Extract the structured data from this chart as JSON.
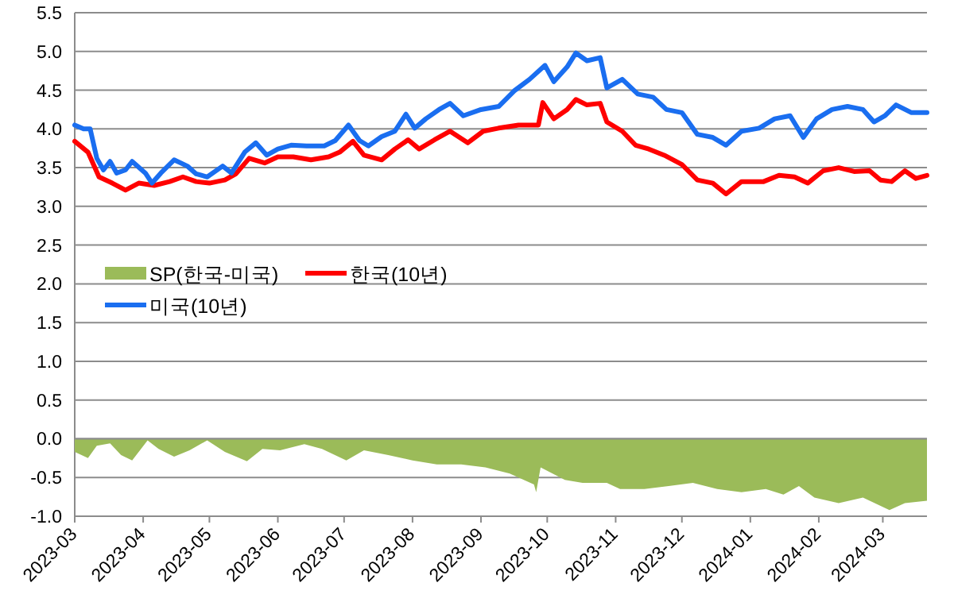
{
  "chart_data": {
    "type": "line",
    "xlim": [
      "2023-03-01",
      "2024-03-21"
    ],
    "ylim": [
      -1.0,
      5.5
    ],
    "xticks": [
      "2023-03",
      "2023-04",
      "2023-05",
      "2023-06",
      "2023-07",
      "2023-08",
      "2023-09",
      "2023-10",
      "2023-11",
      "2023-12",
      "2024-01",
      "2024-02",
      "2024-03"
    ],
    "yticks": [
      {
        "value": -1,
        "label": "-1.0"
      },
      -0.5,
      {
        "value": 0,
        "label": "0.0"
      },
      0.5,
      {
        "value": 1,
        "label": "1.0"
      },
      1.5,
      {
        "value": 2,
        "label": "2.0"
      },
      2.5,
      {
        "value": 3,
        "label": "3.0"
      },
      3.5,
      {
        "value": 4,
        "label": "4.0"
      },
      4.5,
      {
        "value": 5,
        "label": "5.0"
      },
      5.5
    ],
    "grid": "y",
    "legend": "left",
    "line_style": "solid",
    "marker": "none",
    "series": [
      {
        "name": "SP(한국-미국)",
        "type": "area",
        "color": "#9bbb59",
        "x": [
          "2023-03-01",
          "2023-03-07",
          "2023-03-11",
          "2023-03-17",
          "2023-03-22",
          "2023-03-27",
          "2023-04-03",
          "2023-04-08",
          "2023-04-15",
          "2023-04-22",
          "2023-04-30",
          "2023-05-08",
          "2023-05-18",
          "2023-05-25",
          "2023-06-02",
          "2023-06-13",
          "2023-06-21",
          "2023-07-02",
          "2023-07-10",
          "2023-07-21",
          "2023-08-01",
          "2023-08-12",
          "2023-08-23",
          "2023-09-03",
          "2023-09-14",
          "2023-09-25",
          "2023-09-26",
          "2023-09-28",
          "2023-10-09",
          "2023-10-17",
          "2023-10-28",
          "2023-11-03",
          "2023-11-14",
          "2023-11-25",
          "2023-12-06",
          "2023-12-17",
          "2023-12-28",
          "2024-01-08",
          "2024-01-16",
          "2024-01-23",
          "2024-01-30",
          "2024-02-10",
          "2024-02-21",
          "2024-03-04",
          "2024-03-11",
          "2024-03-21"
        ],
        "values": [
          -0.17,
          -0.25,
          -0.09,
          -0.06,
          -0.21,
          -0.28,
          -0.02,
          -0.13,
          -0.23,
          -0.15,
          -0.02,
          -0.17,
          -0.29,
          -0.13,
          -0.15,
          -0.07,
          -0.13,
          -0.28,
          -0.15,
          -0.21,
          -0.28,
          -0.33,
          -0.33,
          -0.37,
          -0.45,
          -0.59,
          -0.69,
          -0.37,
          -0.53,
          -0.57,
          -0.57,
          -0.65,
          -0.65,
          -0.61,
          -0.57,
          -0.65,
          -0.69,
          -0.65,
          -0.72,
          -0.61,
          -0.76,
          -0.83,
          -0.76,
          -0.92,
          -0.83,
          -0.8
        ]
      },
      {
        "name": "한국(10년)",
        "color": "#ff0000",
        "x": [
          "2023-03-01",
          "2023-03-07",
          "2023-03-12",
          "2023-03-18",
          "2023-03-24",
          "2023-03-30",
          "2023-04-06",
          "2023-04-13",
          "2023-04-19",
          "2023-04-25",
          "2023-05-01",
          "2023-05-08",
          "2023-05-13",
          "2023-05-19",
          "2023-05-26",
          "2023-06-01",
          "2023-06-08",
          "2023-06-16",
          "2023-06-24",
          "2023-06-29",
          "2023-07-05",
          "2023-07-10",
          "2023-07-18",
          "2023-07-24",
          "2023-07-30",
          "2023-08-04",
          "2023-08-11",
          "2023-08-18",
          "2023-08-26",
          "2023-09-02",
          "2023-09-09",
          "2023-09-18",
          "2023-09-27",
          "2023-09-29",
          "2023-10-04",
          "2023-10-10",
          "2023-10-14",
          "2023-10-19",
          "2023-10-25",
          "2023-10-28",
          "2023-11-04",
          "2023-11-10",
          "2023-11-16",
          "2023-11-23",
          "2023-12-01",
          "2023-12-08",
          "2023-12-15",
          "2023-12-21",
          "2023-12-28",
          "2024-01-07",
          "2024-01-14",
          "2024-01-21",
          "2024-01-27",
          "2024-02-03",
          "2024-02-10",
          "2024-02-17",
          "2024-02-24",
          "2024-02-29",
          "2024-03-05",
          "2024-03-11",
          "2024-03-16",
          "2024-03-21"
        ],
        "values": [
          3.84,
          3.7,
          3.38,
          3.3,
          3.21,
          3.3,
          3.27,
          3.32,
          3.38,
          3.32,
          3.3,
          3.34,
          3.42,
          3.62,
          3.56,
          3.64,
          3.64,
          3.6,
          3.64,
          3.7,
          3.84,
          3.66,
          3.6,
          3.74,
          3.86,
          3.74,
          3.86,
          3.97,
          3.82,
          3.97,
          4.01,
          4.05,
          4.05,
          4.34,
          4.13,
          4.25,
          4.38,
          4.31,
          4.33,
          4.09,
          3.97,
          3.79,
          3.74,
          3.66,
          3.54,
          3.34,
          3.3,
          3.16,
          3.32,
          3.32,
          3.4,
          3.38,
          3.3,
          3.46,
          3.5,
          3.45,
          3.46,
          3.34,
          3.32,
          3.46,
          3.36,
          3.4
        ]
      },
      {
        "name": "미국(10년)",
        "color": "#1a6ef0",
        "x": [
          "2023-03-01",
          "2023-03-05",
          "2023-03-08",
          "2023-03-11",
          "2023-03-14",
          "2023-03-17",
          "2023-03-20",
          "2023-03-24",
          "2023-03-27",
          "2023-04-02",
          "2023-04-05",
          "2023-04-09",
          "2023-04-15",
          "2023-04-21",
          "2023-04-25",
          "2023-04-30",
          "2023-05-07",
          "2023-05-11",
          "2023-05-17",
          "2023-05-22",
          "2023-05-27",
          "2023-06-01",
          "2023-06-07",
          "2023-06-14",
          "2023-06-22",
          "2023-06-27",
          "2023-07-03",
          "2023-07-08",
          "2023-07-12",
          "2023-07-18",
          "2023-07-24",
          "2023-07-29",
          "2023-08-02",
          "2023-08-07",
          "2023-08-13",
          "2023-08-18",
          "2023-08-24",
          "2023-09-01",
          "2023-09-09",
          "2023-09-16",
          "2023-09-23",
          "2023-09-30",
          "2023-10-04",
          "2023-10-10",
          "2023-10-14",
          "2023-10-19",
          "2023-10-25",
          "2023-10-28",
          "2023-11-04",
          "2023-11-11",
          "2023-11-18",
          "2023-11-24",
          "2023-12-01",
          "2023-12-08",
          "2023-12-15",
          "2023-12-21",
          "2023-12-28",
          "2024-01-05",
          "2024-01-12",
          "2024-01-19",
          "2024-01-25",
          "2024-01-31",
          "2024-02-07",
          "2024-02-14",
          "2024-02-21",
          "2024-02-26",
          "2024-03-02",
          "2024-03-07",
          "2024-03-14",
          "2024-03-21"
        ],
        "values": [
          4.05,
          4.0,
          4.0,
          3.62,
          3.47,
          3.58,
          3.43,
          3.47,
          3.58,
          3.43,
          3.3,
          3.43,
          3.6,
          3.52,
          3.42,
          3.38,
          3.52,
          3.43,
          3.7,
          3.82,
          3.66,
          3.74,
          3.79,
          3.78,
          3.78,
          3.85,
          4.05,
          3.85,
          3.78,
          3.9,
          3.97,
          4.19,
          4.01,
          4.13,
          4.25,
          4.33,
          4.17,
          4.25,
          4.29,
          4.49,
          4.64,
          4.82,
          4.61,
          4.8,
          4.98,
          4.88,
          4.92,
          4.53,
          4.64,
          4.45,
          4.41,
          4.25,
          4.21,
          3.93,
          3.89,
          3.79,
          3.97,
          4.01,
          4.13,
          4.17,
          3.89,
          4.13,
          4.25,
          4.29,
          4.25,
          4.09,
          4.17,
          4.31,
          4.21,
          4.21
        ]
      }
    ]
  }
}
